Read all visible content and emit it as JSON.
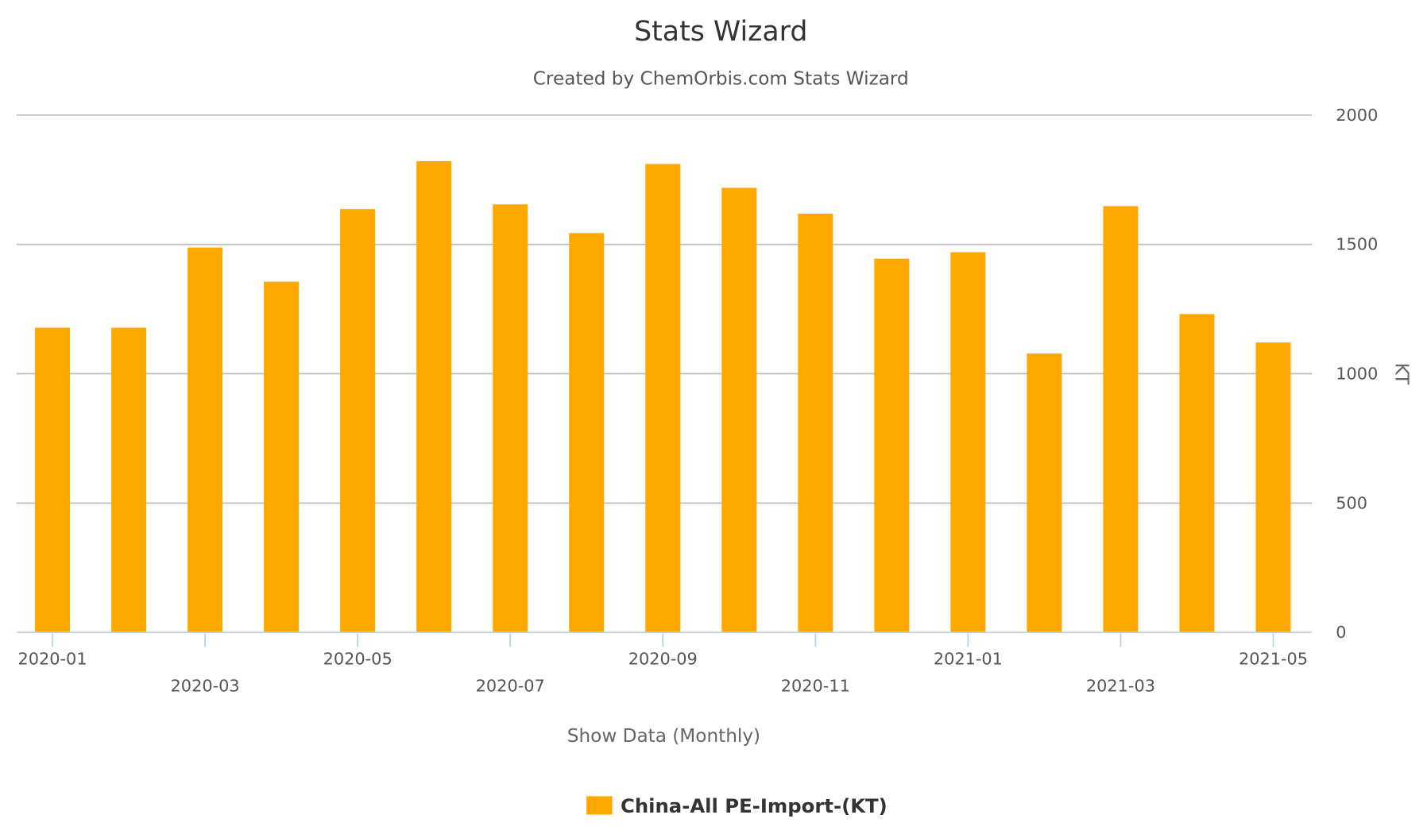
{
  "chart_data": {
    "type": "bar",
    "title": "Stats Wizard",
    "subtitle": "Created by ChemOrbis.com Stats Wizard",
    "xlabel": "Show Data (Monthly)",
    "ylabel": "KT",
    "ylim": [
      0,
      2000
    ],
    "yticks": [
      "0",
      "500",
      "1000",
      "1500",
      "2000"
    ],
    "ytick_values": [
      0,
      500,
      1000,
      1500,
      2000
    ],
    "y_axis_side": "right",
    "grid": true,
    "legend_position": "bottom",
    "categories": [
      "2020-01",
      "2020-02",
      "2020-03",
      "2020-04",
      "2020-05",
      "2020-06",
      "2020-07",
      "2020-08",
      "2020-09",
      "2020-10",
      "2020-11",
      "2020-12",
      "2021-01",
      "2021-02",
      "2021-03",
      "2021-04",
      "2021-05"
    ],
    "xtick_labels": [
      "2020-01",
      "2020-03",
      "2020-05",
      "2020-07",
      "2020-09",
      "2020-11",
      "2021-01",
      "2021-03",
      "2021-05"
    ],
    "series": [
      {
        "name": "China-All PE-Import-(KT)",
        "color": "#FFA800",
        "values": [
          1178,
          1178,
          1488,
          1356,
          1637,
          1822,
          1655,
          1544,
          1811,
          1719,
          1619,
          1445,
          1470,
          1078,
          1648,
          1231,
          1121
        ]
      }
    ]
  }
}
